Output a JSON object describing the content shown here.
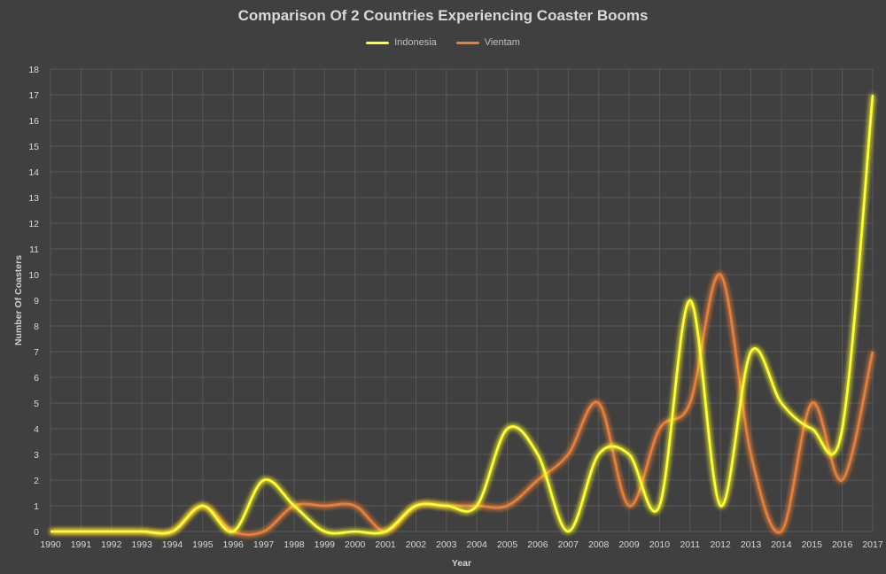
{
  "chart_data": {
    "type": "line",
    "title": "Comparison Of 2 Countries Experiencing Coaster Booms",
    "xlabel": "Year",
    "ylabel": "Number Of Coasters",
    "ylim": [
      0,
      18
    ],
    "yticks": [
      0,
      1,
      2,
      3,
      4,
      5,
      6,
      7,
      8,
      9,
      10,
      11,
      12,
      13,
      14,
      15,
      16,
      17,
      18
    ],
    "grid": true,
    "legend_position": "top-center",
    "categories": [
      "1990",
      "1991",
      "1992",
      "1993",
      "1994",
      "1995",
      "1996",
      "1997",
      "1998",
      "1999",
      "2000",
      "2001",
      "2002",
      "2003",
      "2004",
      "2005",
      "2006",
      "2007",
      "2008",
      "2009",
      "2010",
      "2011",
      "2012",
      "2013",
      "2014",
      "2015",
      "2016",
      "2017"
    ],
    "series": [
      {
        "name": "Indonesia",
        "color": "#ffff33",
        "values": [
          0,
          0,
          0,
          0,
          0,
          1,
          0,
          2,
          1,
          0,
          0,
          0,
          1,
          1,
          1,
          4,
          3,
          0,
          3,
          3,
          1,
          9,
          1,
          7,
          5,
          4,
          4,
          17
        ]
      },
      {
        "name": "Vientam",
        "color": "#e8803a",
        "values": [
          0,
          0,
          0,
          0,
          0,
          1,
          0,
          0,
          1,
          1,
          1,
          0,
          1,
          1,
          1,
          1,
          2,
          3,
          5,
          1,
          4,
          5,
          10,
          3,
          0,
          5,
          2,
          7
        ]
      }
    ]
  }
}
